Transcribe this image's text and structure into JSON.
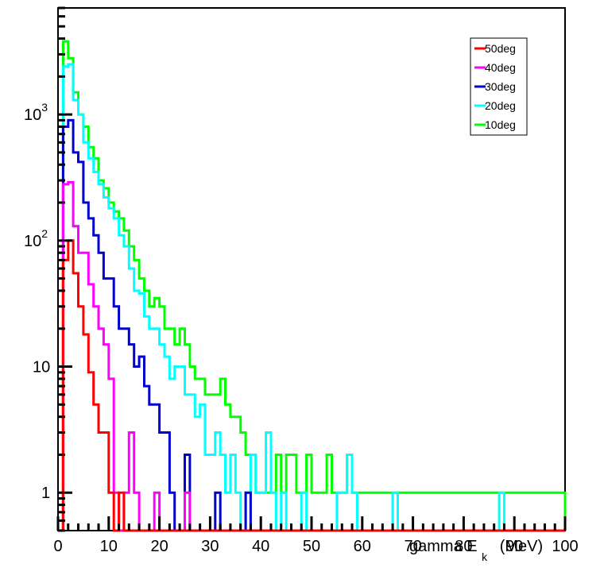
{
  "chart_data": {
    "type": "line",
    "xlabel": "gamma E_k (MeV)",
    "xlabel_main": "gamma E",
    "xlabel_sub": "k",
    "xlabel_unit": "(MeV)",
    "xlim": [
      0,
      100
    ],
    "ylim": [
      0.5,
      7000
    ],
    "yscale": "log",
    "x_ticks": [
      0,
      10,
      20,
      30,
      40,
      50,
      60,
      70,
      80,
      90,
      100
    ],
    "x_tick_labels": [
      "0",
      "10",
      "20",
      "30",
      "40",
      "50",
      "60",
      "70",
      "80",
      "90",
      "100"
    ],
    "y_tick_labels": [
      {
        "value": 1,
        "base": "1",
        "exp": ""
      },
      {
        "value": 10,
        "base": "10",
        "exp": ""
      },
      {
        "value": 100,
        "base": "10",
        "exp": "2"
      },
      {
        "value": 1000,
        "base": "10",
        "exp": "3"
      }
    ],
    "grid": false,
    "legend_position": "top-right",
    "bin_width": 1,
    "series": [
      {
        "name": "50deg",
        "color": "#ff0000",
        "values": [
          0,
          70,
          100,
          55,
          30,
          18,
          9,
          5,
          3,
          3,
          1,
          0,
          1,
          0,
          0,
          0,
          0,
          0,
          0,
          0,
          0,
          0,
          0,
          0,
          0,
          0,
          0,
          0,
          0,
          0,
          0,
          0,
          0,
          0,
          0,
          0,
          0,
          0,
          0,
          0,
          0,
          0,
          0,
          0,
          0,
          0,
          0,
          0,
          0,
          0,
          0,
          0,
          0,
          0,
          0,
          0,
          0,
          0,
          0,
          0,
          0,
          0,
          0,
          0,
          0,
          0,
          0,
          0,
          0,
          0,
          0,
          0,
          0,
          0,
          0,
          0,
          0,
          0,
          0,
          0,
          0,
          0,
          0,
          0,
          0,
          0,
          0,
          0,
          0,
          0,
          0,
          0,
          0,
          0,
          0,
          0,
          0,
          0,
          0,
          0
        ]
      },
      {
        "name": "40deg",
        "color": "#ff00ff",
        "values": [
          0,
          280,
          290,
          130,
          80,
          80,
          45,
          30,
          20,
          15,
          8,
          1,
          0,
          1,
          3,
          1,
          0,
          0,
          0,
          1,
          0,
          0,
          0,
          0,
          0,
          1,
          0,
          0,
          0,
          0,
          0,
          0,
          0,
          0,
          0,
          0,
          0,
          0,
          0,
          0,
          0,
          0,
          0,
          0,
          0,
          0,
          0,
          0,
          0,
          0,
          0,
          0,
          0,
          0,
          0,
          0,
          0,
          0,
          0,
          0,
          0,
          0,
          0,
          0,
          0,
          0,
          0,
          0,
          0,
          0,
          0,
          0,
          0,
          0,
          0,
          0,
          0,
          0,
          0,
          0,
          0,
          0,
          0,
          0,
          0,
          0,
          0,
          0,
          0,
          0,
          0,
          0,
          0,
          0,
          0,
          0,
          0,
          0,
          0,
          0
        ]
      },
      {
        "name": "30deg",
        "color": "#0000cc",
        "values": [
          0,
          800,
          900,
          500,
          420,
          200,
          150,
          110,
          80,
          50,
          50,
          30,
          20,
          20,
          15,
          10,
          12,
          7,
          5,
          5,
          3,
          3,
          1,
          0,
          0,
          2,
          0,
          0,
          0,
          0,
          0,
          1,
          0,
          0,
          0,
          0,
          0,
          1,
          0,
          0,
          0,
          0,
          0,
          0,
          0,
          0,
          0,
          0,
          0,
          0,
          0,
          0,
          0,
          0,
          0,
          0,
          0,
          0,
          0,
          0,
          0,
          0,
          0,
          0,
          0,
          0,
          0,
          0,
          0,
          0,
          0,
          0,
          0,
          0,
          0,
          0,
          0,
          0,
          0,
          0,
          0,
          0,
          0,
          0,
          0,
          0,
          0,
          0,
          0,
          0,
          0,
          0,
          0,
          0,
          0,
          0,
          0,
          0,
          0,
          0
        ]
      },
      {
        "name": "20deg",
        "color": "#00ffff",
        "values": [
          0,
          2400,
          2500,
          1300,
          1000,
          600,
          450,
          350,
          280,
          220,
          180,
          150,
          110,
          90,
          60,
          40,
          38,
          25,
          20,
          20,
          15,
          12,
          8,
          10,
          10,
          6,
          6,
          4,
          5,
          2,
          2,
          3,
          2,
          1,
          2,
          1,
          0,
          1,
          2,
          1,
          1,
          3,
          1,
          0,
          1,
          0,
          0,
          0,
          1,
          0,
          0,
          0,
          0,
          0,
          0,
          1,
          1,
          2,
          1,
          0,
          0,
          0,
          0,
          0,
          0,
          0,
          1,
          0,
          0,
          0,
          0,
          0,
          0,
          0,
          0,
          0,
          0,
          0,
          0,
          0,
          0,
          0,
          0,
          0,
          0,
          0,
          0,
          1,
          0,
          0,
          0,
          0,
          0,
          0,
          0,
          0,
          0,
          0,
          0,
          0
        ]
      },
      {
        "name": "10deg",
        "color": "#00ff00",
        "values": [
          0,
          3800,
          2800,
          1500,
          1000,
          800,
          550,
          450,
          300,
          260,
          200,
          170,
          150,
          120,
          90,
          70,
          50,
          40,
          30,
          35,
          30,
          20,
          20,
          15,
          20,
          15,
          10,
          8,
          8,
          6,
          6,
          6,
          8,
          5,
          4,
          4,
          3,
          2,
          2,
          1,
          1,
          1,
          1,
          2,
          1,
          2,
          2,
          1,
          1,
          2,
          1,
          1,
          1,
          2,
          1,
          1,
          1,
          2,
          1,
          1,
          1,
          1,
          1,
          1,
          1,
          1,
          1,
          1,
          1,
          1,
          1,
          1,
          1,
          1,
          1,
          1,
          1,
          1,
          1,
          1,
          1,
          1,
          1,
          1,
          1,
          1,
          1,
          1,
          1,
          1,
          1,
          1,
          1,
          1,
          1,
          1,
          1,
          1,
          1,
          1
        ]
      }
    ]
  }
}
